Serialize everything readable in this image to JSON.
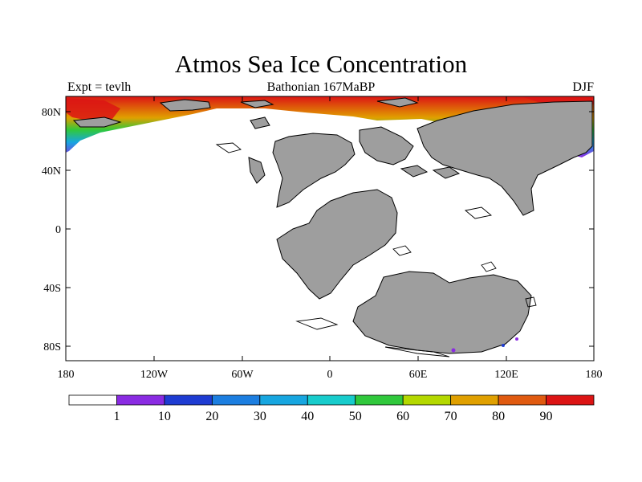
{
  "map": {
    "title": "Atmos Sea Ice Concentration",
    "left_subtitle": "Expt = tevlh",
    "center_subtitle": "Bathonian 167MaBP",
    "right_subtitle": "DJF",
    "lat_ticks": [
      "80N",
      "40N",
      "0",
      "40S",
      "80S"
    ],
    "lon_ticks": [
      "180",
      "120W",
      "60W",
      "0",
      "60E",
      "120E",
      "180"
    ],
    "colors": {
      "land": "#9e9e9e",
      "ocean": "#ffffff",
      "coast": "#000000"
    }
  },
  "colorbar": {
    "labels": [
      "1",
      "10",
      "20",
      "30",
      "40",
      "50",
      "60",
      "70",
      "80",
      "90"
    ],
    "colors": [
      "#ffffff",
      "#8a2be2",
      "#1e3cd2",
      "#1c7ee0",
      "#17a6e0",
      "#18cccc",
      "#30c83c",
      "#b4d800",
      "#e0a000",
      "#e05a10",
      "#dc1414"
    ]
  }
}
